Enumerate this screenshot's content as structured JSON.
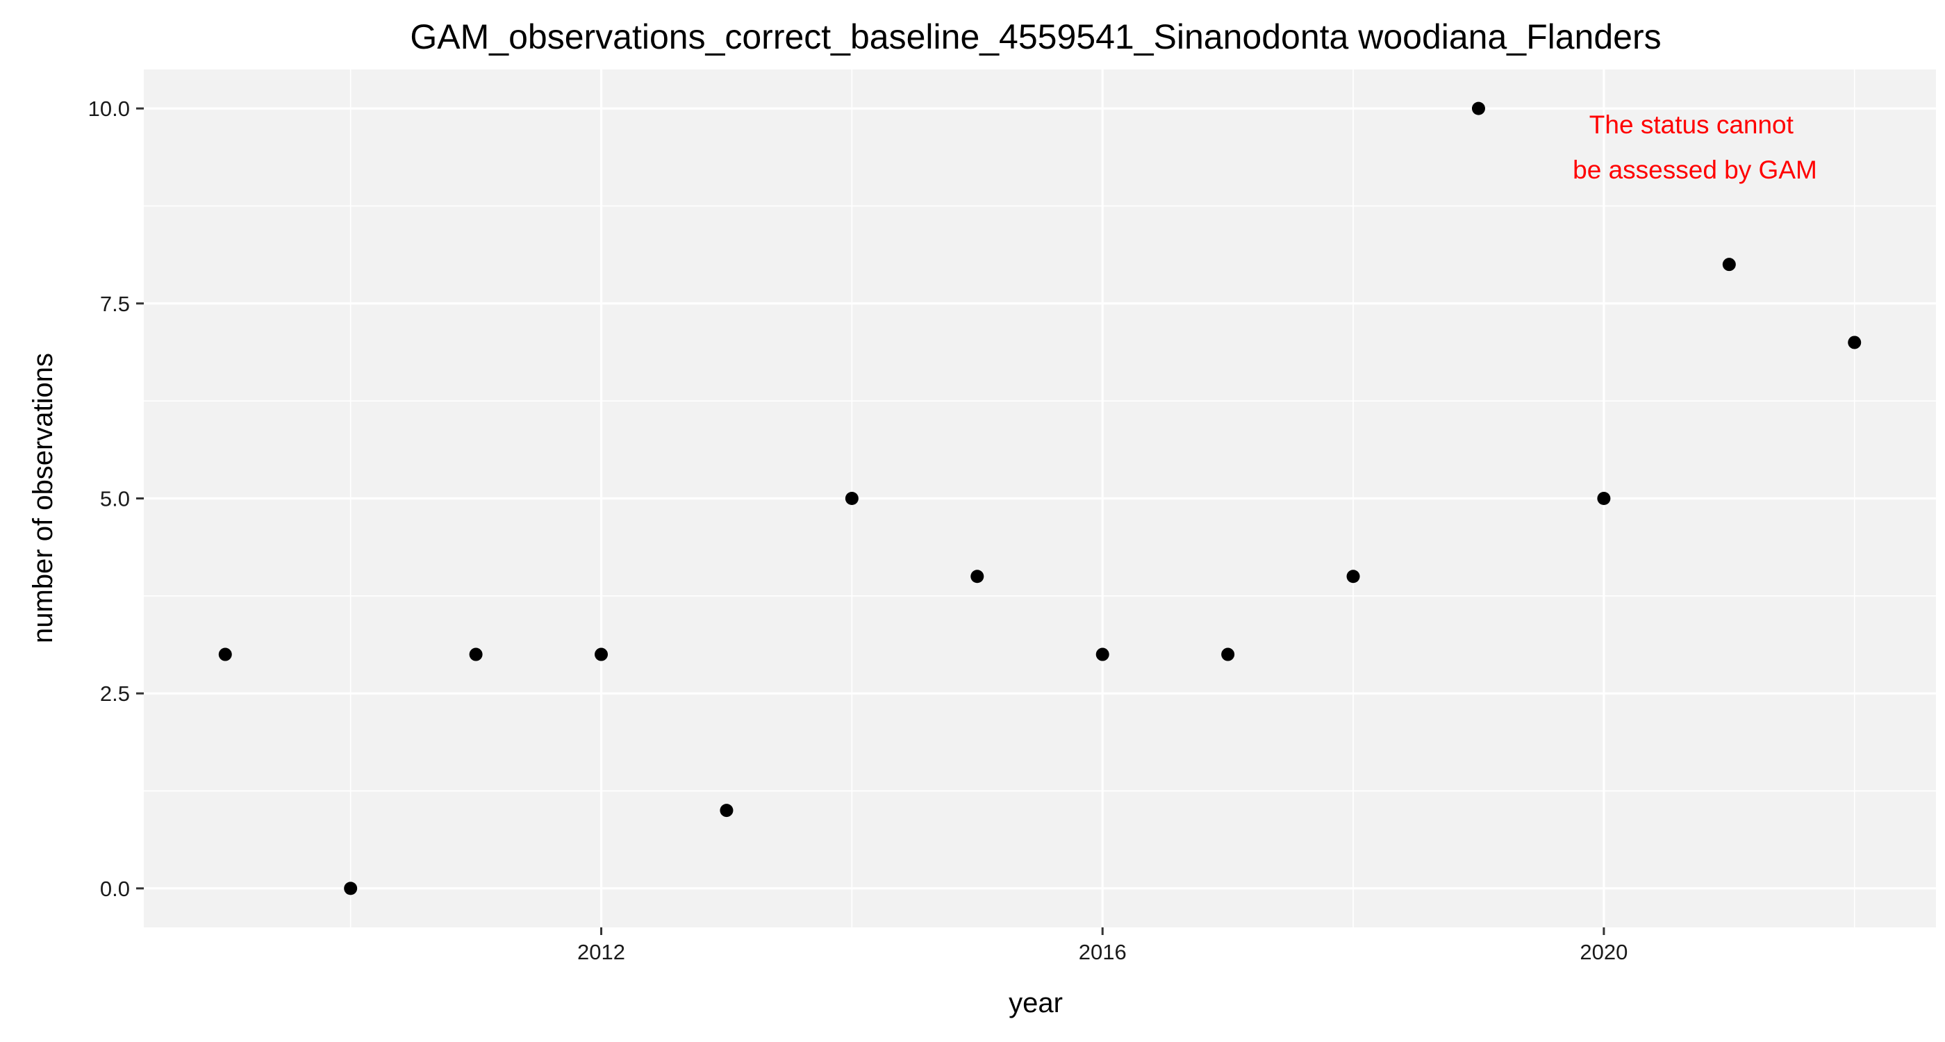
{
  "chart_data": {
    "type": "scatter",
    "title": "GAM_observations_correct_baseline_4559541_Sinanodonta woodiana_Flanders",
    "xlabel": "year",
    "ylabel": "number of observations",
    "x": [
      2009,
      2010,
      2011,
      2012,
      2013,
      2014,
      2015,
      2016,
      2017,
      2018,
      2019,
      2020,
      2021,
      2022
    ],
    "y": [
      3,
      0,
      3,
      3,
      1,
      5,
      4,
      3,
      3,
      4,
      10,
      5,
      8,
      7
    ],
    "xlim": [
      2008.35,
      2022.65
    ],
    "ylim": [
      -0.5,
      10.5
    ],
    "xticks": [
      2012,
      2016,
      2020
    ],
    "xtick_labels": [
      "2012",
      "2016",
      "2020"
    ],
    "yticks": [
      0,
      2.5,
      5,
      7.5,
      10
    ],
    "ytick_labels": [
      "0.0",
      "2.5",
      "5.0",
      "7.5",
      "10.0"
    ],
    "annotation": {
      "lines": [
        "The status cannot",
        "be assessed by GAM"
      ],
      "color": "#ff0000",
      "placement": "top-right"
    },
    "grid": true,
    "panel_background": "#f2f2f2",
    "grid_color": "#ffffff",
    "point_color": "#000000"
  }
}
